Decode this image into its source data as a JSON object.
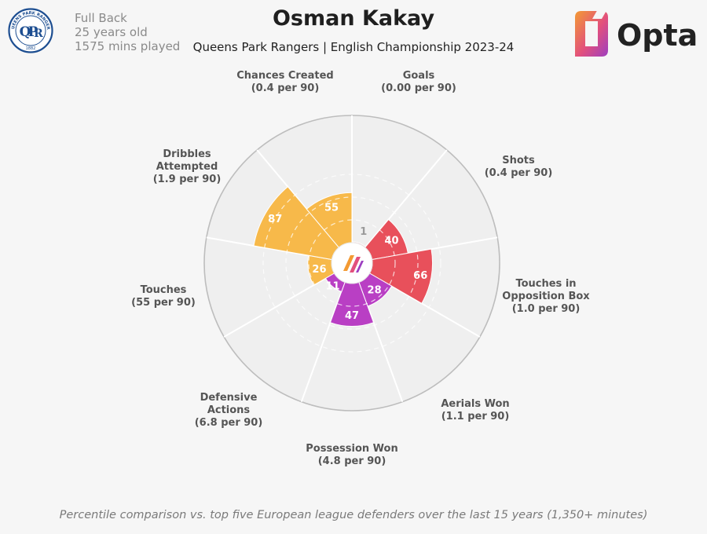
{
  "header": {
    "position": "Full Back",
    "age": "25 years old",
    "minutes": "1575 mins played",
    "title": "Osman Kakay",
    "subtitle": "Queens Park Rangers | English Championship 2023-24",
    "club_logo_text": "QUEENS PARK RANGERS",
    "club_logo_year": "1882",
    "brand": "Opta"
  },
  "footer": {
    "note": "Percentile comparison vs. top five European league defenders over the last 15 years (1,350+ minutes)"
  },
  "colors": {
    "attacking": "#f7b94a",
    "shooting": "#e8505b",
    "defending": "#b93fc4",
    "ring": "#bdbdbd",
    "background": "#f6f6f6"
  },
  "chart_data": {
    "type": "polar-bar",
    "scale": [
      0,
      100
    ],
    "categories": [
      {
        "name": "Goals",
        "sub": "(0.00 per 90)",
        "value": 1,
        "group": "shooting"
      },
      {
        "name": "Shots",
        "sub": "(0.4 per 90)",
        "value": 40,
        "group": "shooting"
      },
      {
        "name": "Touches in Opposition Box",
        "lines": [
          "Touches in",
          "Opposition Box"
        ],
        "sub": "(1.0 per 90)",
        "value": 66,
        "group": "shooting"
      },
      {
        "name": "Aerials Won",
        "sub": "(1.1 per 90)",
        "value": 28,
        "group": "defending"
      },
      {
        "name": "Possession Won",
        "sub": "(4.8 per 90)",
        "value": 47,
        "group": "defending"
      },
      {
        "name": "Defensive Actions",
        "lines": [
          "Defensive",
          "Actions"
        ],
        "sub": "(6.8 per 90)",
        "value": 11,
        "group": "defending"
      },
      {
        "name": "Touches",
        "sub": "(55 per 90)",
        "value": 26,
        "group": "attacking"
      },
      {
        "name": "Dribbles Attempted",
        "lines": [
          "Dribbles",
          "Attempted"
        ],
        "sub": "(1.9 per 90)",
        "value": 87,
        "group": "attacking"
      },
      {
        "name": "Chances Created",
        "sub": "(0.4 per 90)",
        "value": 55,
        "group": "attacking"
      }
    ]
  }
}
